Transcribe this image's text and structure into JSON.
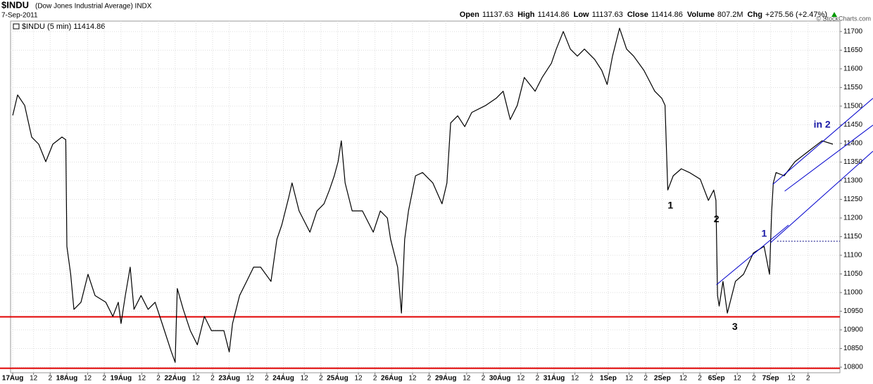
{
  "chart_data": {
    "type": "line",
    "symbol": "$INDU",
    "title": "(Dow Jones Industrial Average) INDX",
    "date": "7-Sep-2011",
    "quote": [
      {
        "label": "Open",
        "value": "11137.63"
      },
      {
        "label": "High",
        "value": "11414.86"
      },
      {
        "label": "Low",
        "value": "11137.63"
      },
      {
        "label": "Close",
        "value": "11414.86"
      },
      {
        "label": "Volume",
        "value": "807.2M"
      },
      {
        "label": "Chg",
        "value": "+275.56 (+2.47%)"
      }
    ],
    "credit": "© StockCharts.com",
    "x": [
      0,
      0.09,
      0.22,
      0.35,
      0.48,
      0.61,
      0.74,
      0.91,
      0.98,
      1.0,
      1.07,
      1.13,
      1.26,
      1.39,
      1.52,
      1.72,
      1.85,
      1.95,
      2.0,
      2.08,
      2.17,
      2.24,
      2.37,
      2.5,
      2.63,
      2.76,
      2.93,
      3.0,
      3.04,
      3.15,
      3.28,
      3.41,
      3.54,
      3.67,
      3.9,
      4.0,
      4.06,
      4.19,
      4.32,
      4.45,
      4.58,
      4.77,
      4.88,
      4.97,
      5.1,
      5.16,
      5.29,
      5.49,
      5.62,
      5.75,
      5.85,
      5.94,
      6.01,
      6.07,
      6.14,
      6.27,
      6.46,
      6.66,
      6.79,
      6.92,
      6.98,
      7.11,
      7.18,
      7.24,
      7.31,
      7.44,
      7.57,
      7.76,
      7.93,
      8.02,
      8.09,
      8.22,
      8.35,
      8.48,
      8.74,
      8.93,
      9.06,
      9.19,
      9.32,
      9.45,
      9.65,
      9.78,
      9.95,
      10.04,
      10.17,
      10.3,
      10.43,
      10.56,
      10.75,
      10.88,
      10.98,
      11.08,
      11.21,
      11.34,
      11.47,
      11.66,
      11.86,
      11.99,
      12.05,
      12.1,
      12.2,
      12.35,
      12.5,
      12.7,
      12.85,
      12.95,
      12.99,
      13.02,
      13.05,
      13.12,
      13.2,
      13.35,
      13.5,
      13.68,
      13.88,
      13.98,
      14.02,
      14.05,
      14.1,
      14.25,
      14.45,
      14.7,
      14.95,
      15.15
    ],
    "series": [
      {
        "name": "$INDU (5 min) 11414.86",
        "color": "#000000",
        "values": [
          11475,
          11530,
          11502,
          11417,
          11398,
          11351,
          11398,
          11417,
          11410,
          11124,
          11049,
          10955,
          10974,
          11049,
          10992,
          10974,
          10936,
          10974,
          10917,
          10992,
          11068,
          10955,
          10992,
          10955,
          10974,
          10917,
          10841,
          10813,
          11011,
          10955,
          10898,
          10860,
          10936,
          10898,
          10898,
          10841,
          10917,
          10992,
          11030,
          11068,
          11068,
          11030,
          11143,
          11181,
          11256,
          11294,
          11219,
          11162,
          11219,
          11238,
          11275,
          11313,
          11351,
          11407,
          11294,
          11219,
          11219,
          11162,
          11219,
          11200,
          11143,
          11068,
          10945,
          11143,
          11219,
          11313,
          11322,
          11294,
          11238,
          11294,
          11455,
          11474,
          11445,
          11483,
          11502,
          11521,
          11540,
          11464,
          11502,
          11577,
          11540,
          11577,
          11615,
          11653,
          11700,
          11653,
          11634,
          11653,
          11625,
          11596,
          11558,
          11634,
          11709,
          11653,
          11634,
          11596,
          11540,
          11521,
          11502,
          11275,
          11313,
          11332,
          11322,
          11304,
          11247,
          11275,
          11247,
          10992,
          10964,
          11030,
          10945,
          11030,
          11049,
          11106,
          11124,
          11049,
          11219,
          11294,
          11322,
          11313,
          11351,
          11379,
          11407,
          11398
        ]
      }
    ],
    "xlim": [
      -0.04,
      15.28
    ],
    "ylim": [
      10785,
      11728
    ],
    "yticks": [
      10800,
      10850,
      10900,
      10950,
      11000,
      11050,
      11100,
      11150,
      11200,
      11250,
      11300,
      11350,
      11400,
      11450,
      11500,
      11550,
      11600,
      11650,
      11700
    ],
    "xticks": [
      {
        "value": 0,
        "label": "17Aug"
      },
      {
        "value": 0.385,
        "label": "12"
      },
      {
        "value": 0.692,
        "label": "2"
      },
      {
        "value": 1,
        "label": "18Aug"
      },
      {
        "value": 1.385,
        "label": "12"
      },
      {
        "value": 1.692,
        "label": "2"
      },
      {
        "value": 2,
        "label": "19Aug"
      },
      {
        "value": 2.385,
        "label": "12"
      },
      {
        "value": 2.692,
        "label": "2"
      },
      {
        "value": 3,
        "label": "22Aug"
      },
      {
        "value": 3.385,
        "label": "12"
      },
      {
        "value": 3.692,
        "label": "2"
      },
      {
        "value": 4,
        "label": "23Aug"
      },
      {
        "value": 4.385,
        "label": "12"
      },
      {
        "value": 4.692,
        "label": "2"
      },
      {
        "value": 5,
        "label": "24Aug"
      },
      {
        "value": 5.385,
        "label": "12"
      },
      {
        "value": 5.692,
        "label": "2"
      },
      {
        "value": 6,
        "label": "25Aug"
      },
      {
        "value": 6.385,
        "label": "12"
      },
      {
        "value": 6.692,
        "label": "2"
      },
      {
        "value": 7,
        "label": "26Aug"
      },
      {
        "value": 7.385,
        "label": "12"
      },
      {
        "value": 7.692,
        "label": "2"
      },
      {
        "value": 8,
        "label": "29Aug"
      },
      {
        "value": 8.385,
        "label": "12"
      },
      {
        "value": 8.692,
        "label": "2"
      },
      {
        "value": 9,
        "label": "30Aug"
      },
      {
        "value": 9.385,
        "label": "12"
      },
      {
        "value": 9.692,
        "label": "2"
      },
      {
        "value": 10,
        "label": "31Aug"
      },
      {
        "value": 10.385,
        "label": "12"
      },
      {
        "value": 10.692,
        "label": "2"
      },
      {
        "value": 11,
        "label": "1Sep"
      },
      {
        "value": 11.385,
        "label": "12"
      },
      {
        "value": 11.692,
        "label": "2"
      },
      {
        "value": 12,
        "label": "2Sep"
      },
      {
        "value": 12.385,
        "label": "12"
      },
      {
        "value": 12.692,
        "label": "2"
      },
      {
        "value": 13,
        "label": "6Sep"
      },
      {
        "value": 13.385,
        "label": "12"
      },
      {
        "value": 13.692,
        "label": "2"
      },
      {
        "value": 14,
        "label": "7Sep"
      },
      {
        "value": 14.385,
        "label": "12"
      },
      {
        "value": 14.692,
        "label": "2"
      }
    ],
    "grid": true,
    "hlines": [
      {
        "value": 10935,
        "color": "#e00000"
      },
      {
        "value": 10797,
        "color": "#e00000"
      }
    ],
    "dashed_lines": [
      {
        "value": 11137.63,
        "from": 14.12,
        "color": "#000080"
      }
    ],
    "trend_lines": [
      {
        "x": [
          13.0,
          14.33
        ],
        "y": [
          11021,
          11181
        ],
        "color": "#0000cc"
      },
      {
        "x": [
          14.0,
          15.89
        ],
        "y": [
          11134,
          11379
        ],
        "color": "#0000cc"
      },
      {
        "x": [
          14.04,
          15.89
        ],
        "y": [
          11290,
          11521
        ],
        "color": "#0000cc"
      },
      {
        "x": [
          14.26,
          15.89
        ],
        "y": [
          11272,
          11449
        ],
        "color": "#0000cc"
      }
    ],
    "annotations": [
      {
        "text": "1",
        "x": 12.15,
        "y": 11232,
        "color": "#000000"
      },
      {
        "text": "2",
        "x": 13.0,
        "y": 11196,
        "color": "#000000"
      },
      {
        "text": "3",
        "x": 13.34,
        "y": 10907,
        "color": "#000000"
      },
      {
        "text": "1",
        "x": 13.88,
        "y": 11157,
        "color": "#1a1aa6"
      },
      {
        "text": "in 2",
        "x": 14.95,
        "y": 11449,
        "color": "#1a1aa6"
      }
    ]
  }
}
